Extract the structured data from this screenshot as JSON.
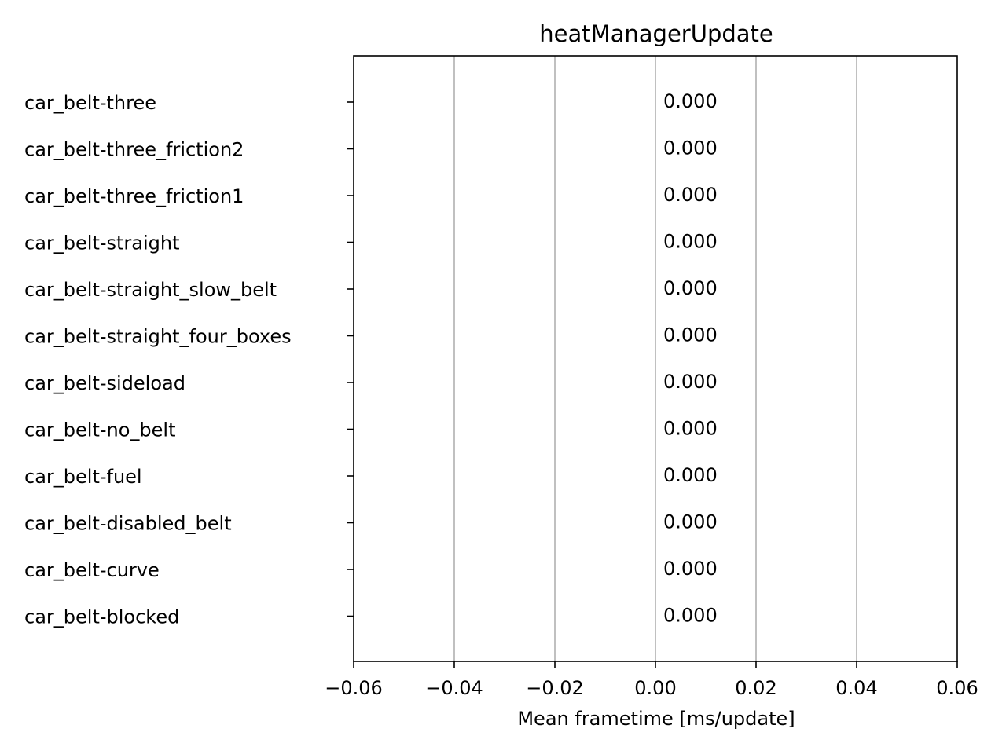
{
  "chart_data": {
    "type": "bar",
    "orientation": "horizontal",
    "title": "heatManagerUpdate",
    "xlabel": "Mean frametime [ms/update]",
    "ylabel": "",
    "xlim": [
      -0.06,
      0.06
    ],
    "xticks": [
      -0.06,
      -0.04,
      -0.02,
      0.0,
      0.02,
      0.04,
      0.06
    ],
    "xtick_labels": [
      "−0.06",
      "−0.04",
      "−0.02",
      "0.00",
      "0.02",
      "0.04",
      "0.06"
    ],
    "grid": "x",
    "categories": [
      "car_belt-three",
      "car_belt-three_friction2",
      "car_belt-three_friction1",
      "car_belt-straight",
      "car_belt-straight_slow_belt",
      "car_belt-straight_four_boxes",
      "car_belt-sideload",
      "car_belt-no_belt",
      "car_belt-fuel",
      "car_belt-disabled_belt",
      "car_belt-curve",
      "car_belt-blocked"
    ],
    "values": [
      0.0,
      0.0,
      0.0,
      0.0,
      0.0,
      0.0,
      0.0,
      0.0,
      0.0,
      0.0,
      0.0,
      0.0
    ],
    "value_labels": [
      "0.000",
      "0.000",
      "0.000",
      "0.000",
      "0.000",
      "0.000",
      "0.000",
      "0.000",
      "0.000",
      "0.000",
      "0.000",
      "0.000"
    ]
  }
}
